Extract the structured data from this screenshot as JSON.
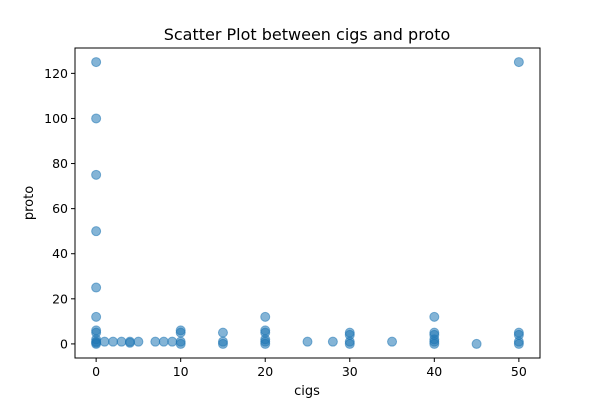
{
  "chart_data": {
    "type": "scatter",
    "title": "Scatter Plot between cigs and proto",
    "xlabel": "cigs",
    "ylabel": "proto",
    "xlim": [
      -2.5,
      52.5
    ],
    "ylim": [
      -6.25,
      131.25
    ],
    "xticks": [
      0,
      10,
      20,
      30,
      40,
      50
    ],
    "yticks": [
      0,
      20,
      40,
      60,
      80,
      100,
      120
    ],
    "grid": false,
    "legend": "none",
    "marker_color": "#1f77b4",
    "marker_alpha": 0.55,
    "points": [
      {
        "x": 0,
        "y": 125
      },
      {
        "x": 0,
        "y": 100
      },
      {
        "x": 0,
        "y": 75
      },
      {
        "x": 0,
        "y": 50
      },
      {
        "x": 0,
        "y": 25
      },
      {
        "x": 0,
        "y": 12
      },
      {
        "x": 0,
        "y": 6
      },
      {
        "x": 0,
        "y": 5
      },
      {
        "x": 0,
        "y": 2
      },
      {
        "x": 0,
        "y": 1
      },
      {
        "x": 0,
        "y": 0.5
      },
      {
        "x": 0,
        "y": 0
      },
      {
        "x": 1,
        "y": 1
      },
      {
        "x": 2,
        "y": 1
      },
      {
        "x": 3,
        "y": 1
      },
      {
        "x": 4,
        "y": 0.5
      },
      {
        "x": 4,
        "y": 1
      },
      {
        "x": 5,
        "y": 1
      },
      {
        "x": 7,
        "y": 1
      },
      {
        "x": 8,
        "y": 1
      },
      {
        "x": 9,
        "y": 1
      },
      {
        "x": 10,
        "y": 6
      },
      {
        "x": 10,
        "y": 5
      },
      {
        "x": 10,
        "y": 1
      },
      {
        "x": 10,
        "y": 0
      },
      {
        "x": 15,
        "y": 5
      },
      {
        "x": 15,
        "y": 1
      },
      {
        "x": 15,
        "y": 0
      },
      {
        "x": 20,
        "y": 12
      },
      {
        "x": 20,
        "y": 6
      },
      {
        "x": 20,
        "y": 5
      },
      {
        "x": 20,
        "y": 2
      },
      {
        "x": 20,
        "y": 1
      },
      {
        "x": 20,
        "y": 0
      },
      {
        "x": 25,
        "y": 1
      },
      {
        "x": 28,
        "y": 1
      },
      {
        "x": 30,
        "y": 5
      },
      {
        "x": 30,
        "y": 4
      },
      {
        "x": 30,
        "y": 1
      },
      {
        "x": 30,
        "y": 0
      },
      {
        "x": 35,
        "y": 1
      },
      {
        "x": 40,
        "y": 12
      },
      {
        "x": 40,
        "y": 5
      },
      {
        "x": 40,
        "y": 4
      },
      {
        "x": 40,
        "y": 2
      },
      {
        "x": 40,
        "y": 1
      },
      {
        "x": 40,
        "y": 0
      },
      {
        "x": 45,
        "y": 0
      },
      {
        "x": 50,
        "y": 125
      },
      {
        "x": 50,
        "y": 5
      },
      {
        "x": 50,
        "y": 4
      },
      {
        "x": 50,
        "y": 1
      },
      {
        "x": 50,
        "y": 0
      }
    ]
  }
}
